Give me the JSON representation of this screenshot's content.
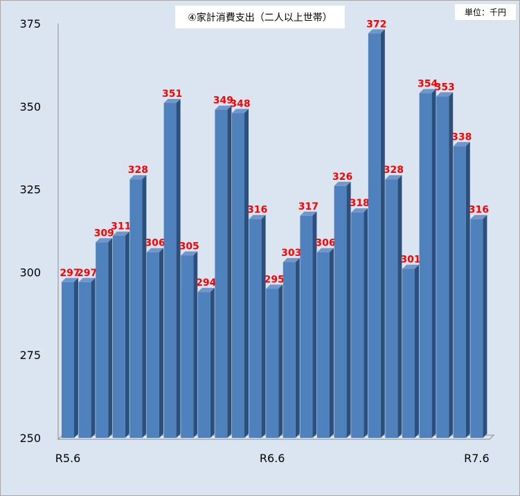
{
  "chart_data": {
    "type": "bar",
    "title": "④家計消費支出（二人以上世帯）",
    "unit_label": "単位：千円",
    "ylim": [
      250,
      375
    ],
    "yticks": [
      250,
      275,
      300,
      325,
      350,
      375
    ],
    "x_tick_labels": [
      "R5.6",
      "R6.6",
      "R7.6"
    ],
    "x_tick_index": [
      0,
      12,
      24
    ],
    "categories": [
      "R5.6",
      "",
      "",
      "",
      "",
      "",
      "",
      "",
      "",
      "",
      "",
      "",
      "R6.6",
      "",
      "",
      "",
      "",
      "",
      "",
      "",
      "",
      "",
      "",
      "",
      "R7.6"
    ],
    "values": [
      297,
      297,
      309,
      311,
      328,
      306,
      351,
      305,
      294,
      349,
      348,
      316,
      295,
      303,
      317,
      306,
      326,
      318,
      372,
      328,
      301,
      354,
      353,
      338,
      316
    ],
    "grid": false,
    "legend": "none",
    "colors": {
      "bar_front": "#4f81bd",
      "bar_side": "#2c4f7c",
      "bar_top": "#6f97cc",
      "value_label": "#ff0000",
      "background": "#dbe5f1"
    }
  }
}
